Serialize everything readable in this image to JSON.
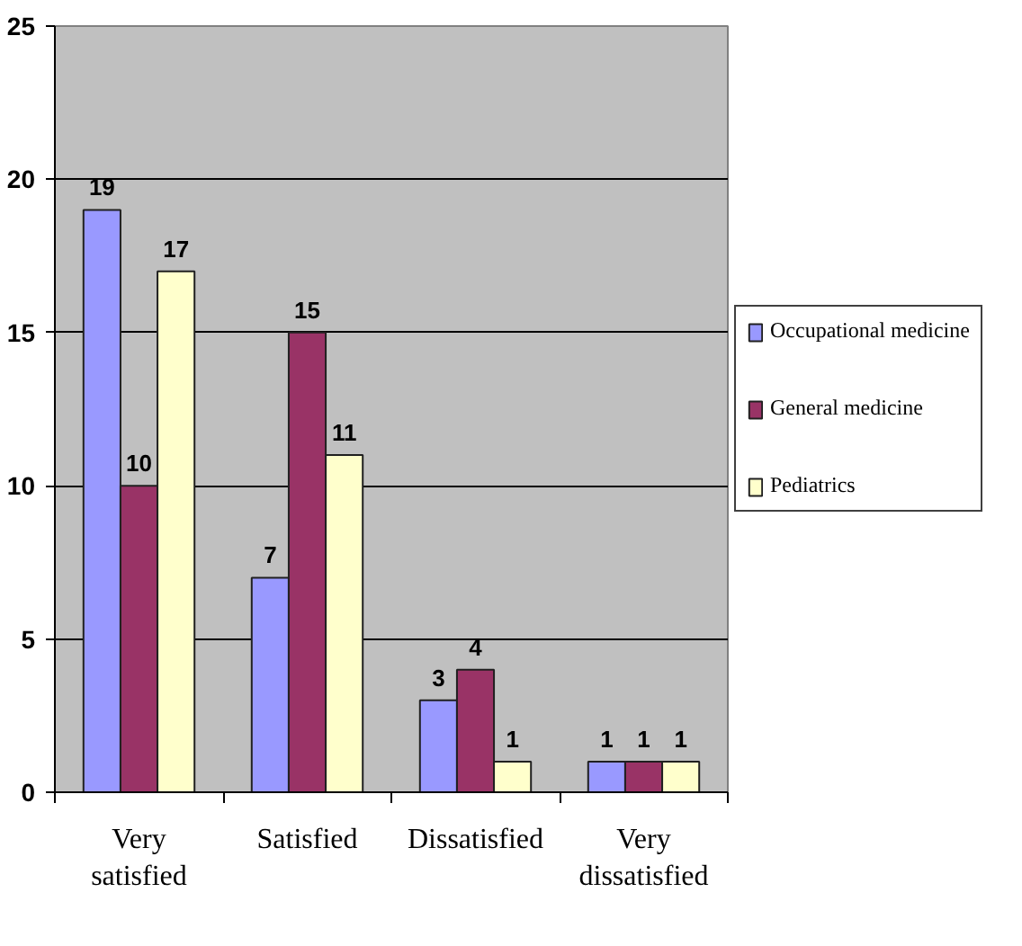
{
  "chart_data": {
    "type": "bar",
    "categories": [
      "Very satisfied",
      "Satisfied",
      "Dissatisfied",
      "Very dissatisfied"
    ],
    "series": [
      {
        "name": "Occupational medicine",
        "color": "#9999ff",
        "values": [
          19,
          7,
          3,
          1
        ]
      },
      {
        "name": "General medicine",
        "color": "#993366",
        "values": [
          10,
          15,
          4,
          1
        ]
      },
      {
        "name": "Pediatrics",
        "color": "#ffffcc",
        "values": [
          17,
          11,
          1,
          1
        ]
      }
    ],
    "ylim": [
      0,
      25
    ],
    "yticks": [
      0,
      5,
      10,
      15,
      20,
      25
    ],
    "grid": "y",
    "legend": "right",
    "data_labels": true
  }
}
